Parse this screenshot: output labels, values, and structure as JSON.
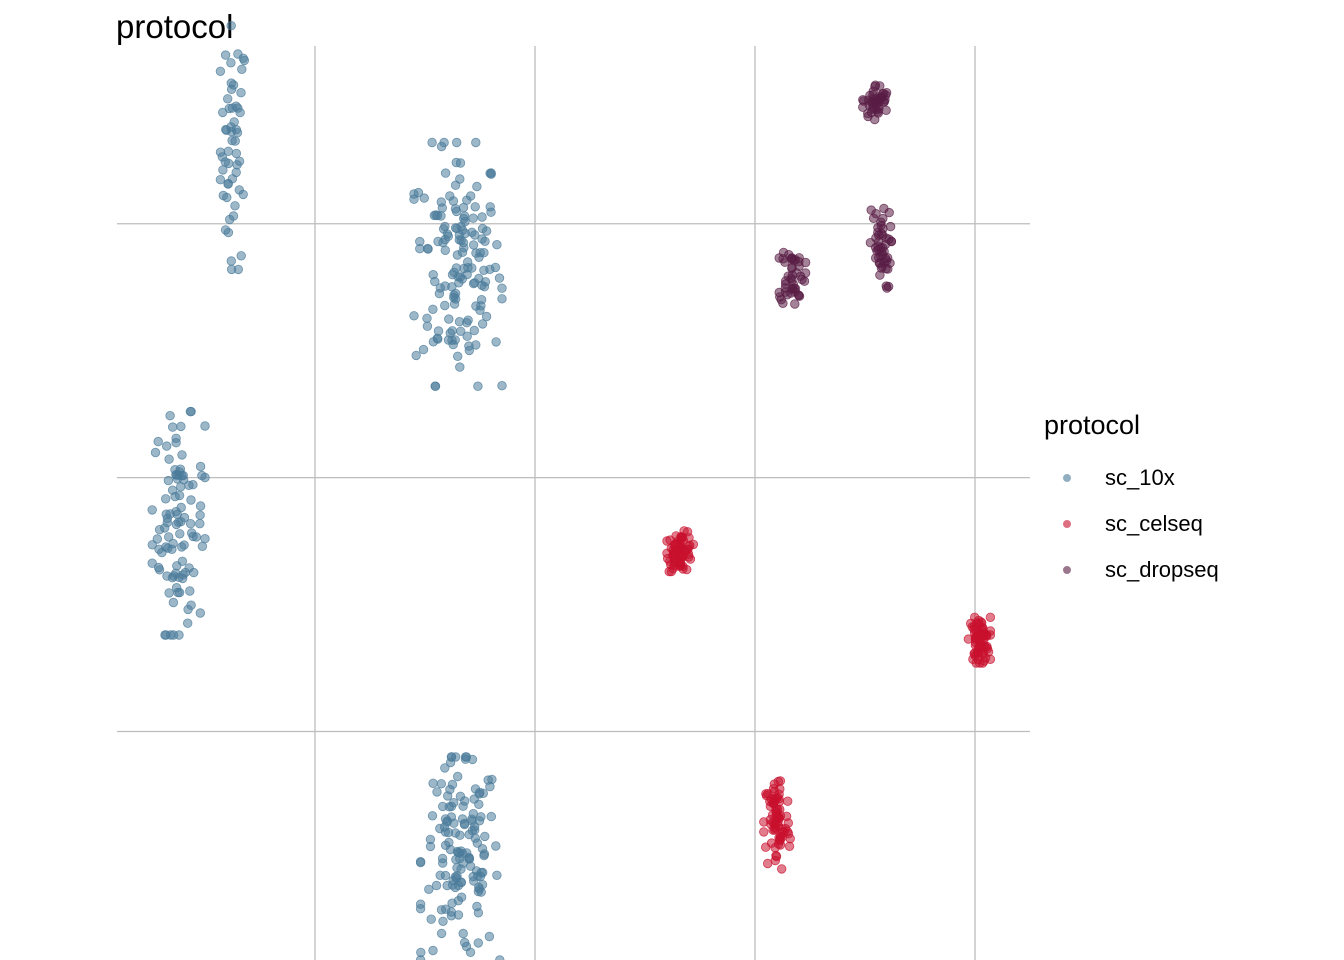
{
  "chart_data": {
    "type": "scatter",
    "title": "protocol",
    "xlabel": "",
    "ylabel": "",
    "xlim": [
      -1.9,
      2.25
    ],
    "ylim": [
      -1.9,
      1.7
    ],
    "x_gridlines": [
      -1,
      0,
      1,
      2
    ],
    "y_gridlines": [
      1,
      0,
      -1
    ],
    "grid": true,
    "axis_labels_shown": false,
    "legend": {
      "title": "protocol",
      "placement": "right"
    },
    "series": [
      {
        "name": "sc_10x",
        "color": "#4B7B9A",
        "clusters": [
          {
            "cx": -1.37,
            "cy": 1.3,
            "sx": 0.03,
            "sy": 0.24,
            "n": 55
          },
          {
            "cx": -0.35,
            "cy": 0.84,
            "sx": 0.1,
            "sy": 0.24,
            "n": 150
          },
          {
            "cx": -1.62,
            "cy": -0.18,
            "sx": 0.06,
            "sy": 0.22,
            "n": 100
          },
          {
            "cx": -0.34,
            "cy": -1.5,
            "sx": 0.09,
            "sy": 0.2,
            "n": 140
          }
        ]
      },
      {
        "name": "sc_celseq",
        "color": "#C8102E",
        "clusters": [
          {
            "cx": 0.66,
            "cy": -0.29,
            "sx": 0.03,
            "sy": 0.04,
            "n": 70
          },
          {
            "cx": 2.02,
            "cy": -0.64,
            "sx": 0.025,
            "sy": 0.045,
            "n": 65
          },
          {
            "cx": 1.1,
            "cy": -1.36,
            "sx": 0.03,
            "sy": 0.1,
            "n": 75
          }
        ]
      },
      {
        "name": "sc_dropseq",
        "color": "#5A1E45",
        "clusters": [
          {
            "cx": 1.55,
            "cy": 1.48,
            "sx": 0.03,
            "sy": 0.035,
            "n": 45
          },
          {
            "cx": 1.17,
            "cy": 0.8,
            "sx": 0.03,
            "sy": 0.06,
            "n": 45
          },
          {
            "cx": 1.57,
            "cy": 0.9,
            "sx": 0.025,
            "sy": 0.08,
            "n": 50
          }
        ]
      }
    ]
  }
}
